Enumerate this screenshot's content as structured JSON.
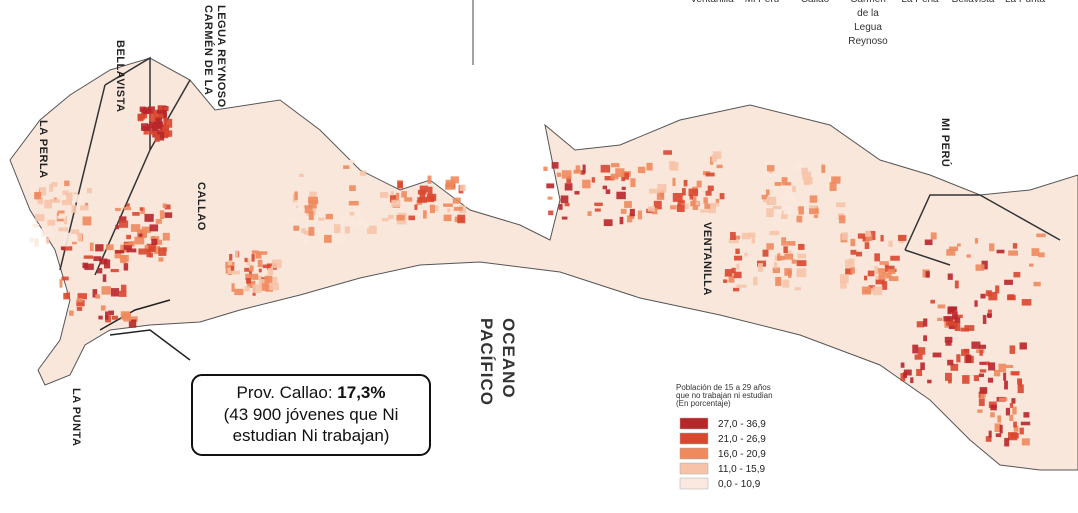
{
  "header": {
    "labels": [
      {
        "lines": [
          "Ventanilla"
        ]
      },
      {
        "lines": [
          "Mi Perú"
        ]
      },
      {
        "lines": [
          "Callao"
        ]
      },
      {
        "lines": [
          "Carmen",
          "de la",
          "Legua",
          "Reynoso"
        ]
      },
      {
        "lines": [
          "La Perla"
        ]
      },
      {
        "lines": [
          "Bellavista"
        ]
      },
      {
        "lines": [
          "La Punta"
        ]
      }
    ]
  },
  "map": {
    "districts": [
      {
        "label": "CARMÉN DE LA"
      },
      {
        "label": "LEGUA REYNOSO"
      },
      {
        "label": "BELLAVISTA"
      },
      {
        "label": "LA PERLA"
      },
      {
        "label": "CALLAO"
      },
      {
        "label": "LA PUNTA"
      },
      {
        "label": "VENTANILLA"
      },
      {
        "label": "MI PERÚ"
      }
    ],
    "ocean": [
      "OCEANO",
      "PACÍFICO"
    ]
  },
  "info_box": {
    "prefix": "Prov. Callao: ",
    "value": "17,3%",
    "lines": [
      "(43 900 jóvenes que Ni",
      "estudian Ni trabajan)"
    ]
  },
  "legend": {
    "title": [
      "Población de 15 a 29 años",
      "que no trabajan ni estudian",
      "(En porcentaje)"
    ],
    "items": [
      {
        "label": "27,0 - 36,9",
        "color": "#b8262a"
      },
      {
        "label": "21,0 - 26,9",
        "color": "#d9472f"
      },
      {
        "label": "16,0 - 20,9",
        "color": "#ef8a5d"
      },
      {
        "label": "11,0 - 15,9",
        "color": "#f6c3a8"
      },
      {
        "label": "0,0 - 10,9",
        "color": "#fbe9df"
      }
    ]
  }
}
